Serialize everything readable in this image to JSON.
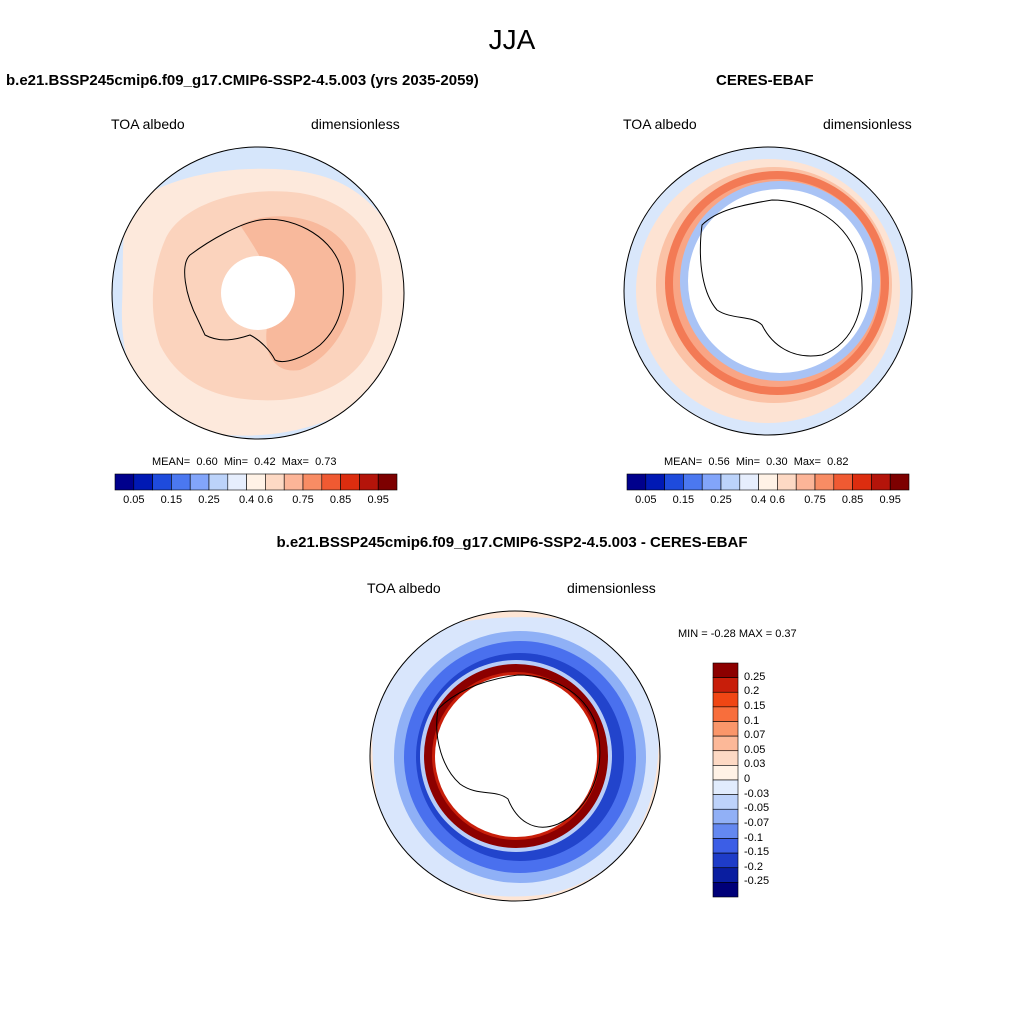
{
  "figure": {
    "title": "JJA",
    "variable_label": "TOA albedo",
    "units_label": "dimensionless"
  },
  "panels": {
    "model": {
      "title": "b.e21.BSSP245cmip6.f09_g17.CMIP6-SSP2-4.5.003 (yrs 2035-2059)",
      "stats": {
        "mean_label": "MEAN=",
        "mean": "0.60",
        "min_label": "Min=",
        "min": "0.42",
        "max_label": "Max=",
        "max": "0.73"
      }
    },
    "obs": {
      "title": "CERES-EBAF",
      "stats": {
        "mean_label": "MEAN=",
        "mean": "0.56",
        "min_label": "Min=",
        "min": "0.30",
        "max_label": "Max=",
        "max": "0.82"
      }
    },
    "diff": {
      "title": "b.e21.BSSP245cmip6.f09_g17.CMIP6-SSP2-4.5.003 - CERES-EBAF",
      "stats_text": "MIN =  -0.28 MAX =   0.37"
    }
  },
  "colorbars": {
    "abs_colors": [
      "#00008c",
      "#0019b4",
      "#1e4bdc",
      "#4b78f0",
      "#82a5fa",
      "#bcd3fa",
      "#e6eefd",
      "#fff2e6",
      "#fdd9c4",
      "#fcb598",
      "#f88c64",
      "#f05a32",
      "#dc2d0f",
      "#b4140a",
      "#7d0000"
    ],
    "abs_ticks": [
      "0.05",
      "0.15",
      "0.25",
      "0.4",
      "0.6",
      "0.75",
      "0.85",
      "0.95"
    ],
    "diff_colors": [
      "#8c0000",
      "#c81e0a",
      "#f04614",
      "#f86e3c",
      "#fa966a",
      "#fcb898",
      "#fdd9c4",
      "#fff2e6",
      "#e1ecfd",
      "#bdd2fa",
      "#91b0f6",
      "#6488f0",
      "#3c5ee6",
      "#1e3cc8",
      "#0a1ea0",
      "#000078"
    ],
    "diff_ticks": [
      "0.25",
      "0.2",
      "0.15",
      "0.1",
      "0.07",
      "0.05",
      "0.03",
      "0",
      "-0.03",
      "-0.05",
      "-0.07",
      "-0.1",
      "-0.15",
      "-0.2",
      "-0.25"
    ]
  },
  "chart_data": [
    {
      "type": "heatmap",
      "projection": "south-polar-stereographic",
      "title": "b.e21.BSSP245cmip6.f09_g17.CMIP6-SSP2-4.5.003 (yrs 2035-2059)",
      "variable": "TOA albedo",
      "units": "dimensionless",
      "color_levels": [
        0.05,
        0.1,
        0.15,
        0.2,
        0.25,
        0.3,
        0.4,
        0.5,
        0.6,
        0.7,
        0.75,
        0.8,
        0.85,
        0.9,
        0.95
      ],
      "mean": 0.6,
      "min": 0.42,
      "max": 0.73
    },
    {
      "type": "heatmap",
      "projection": "south-polar-stereographic",
      "title": "CERES-EBAF",
      "variable": "TOA albedo",
      "units": "dimensionless",
      "color_levels": [
        0.05,
        0.1,
        0.15,
        0.2,
        0.25,
        0.3,
        0.4,
        0.5,
        0.6,
        0.7,
        0.75,
        0.8,
        0.85,
        0.9,
        0.95
      ],
      "mean": 0.56,
      "min": 0.3,
      "max": 0.82
    },
    {
      "type": "heatmap",
      "projection": "south-polar-stereographic",
      "title": "b.e21.BSSP245cmip6.f09_g17.CMIP6-SSP2-4.5.003 - CERES-EBAF",
      "variable": "TOA albedo",
      "units": "dimensionless",
      "color_levels": [
        -0.25,
        -0.2,
        -0.15,
        -0.1,
        -0.07,
        -0.05,
        -0.03,
        0,
        0.03,
        0.05,
        0.07,
        0.1,
        0.15,
        0.2,
        0.25
      ],
      "min": -0.28,
      "max": 0.37
    }
  ]
}
